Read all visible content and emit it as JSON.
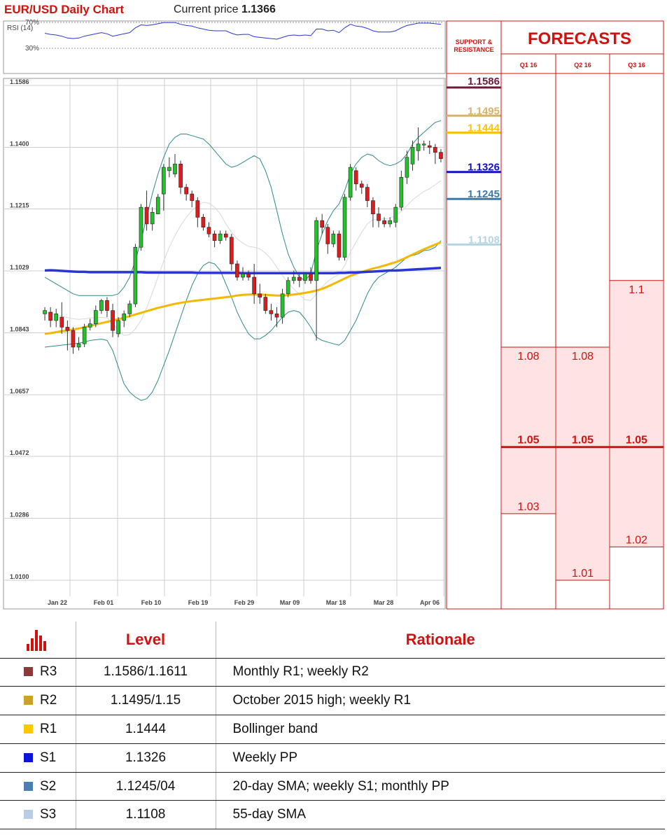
{
  "header": {
    "title": "EUR/USD Daily Chart",
    "current_price_label": "Current price",
    "current_price": "1.1366"
  },
  "chart_data": {
    "type": "candlestick",
    "title": "EUR/USD Daily Chart",
    "y_ticks": [
      "1.1586",
      "1.1400",
      "1.1215",
      "1.1029",
      "1.0843",
      "1.0657",
      "1.0472",
      "1.0286",
      "1.0100"
    ],
    "ylim": [
      1.01,
      1.1586
    ],
    "x_ticks": [
      "Jan 22",
      "Feb 01",
      "Feb 10",
      "Feb 19",
      "Feb 29",
      "Mar 09",
      "Mar 18",
      "Mar 28",
      "Apr 06"
    ],
    "grid": true,
    "candles": [
      [
        1.09,
        1.091,
        1.088,
        1.092
      ],
      [
        1.0905,
        1.088,
        1.086,
        1.092
      ],
      [
        1.088,
        1.09,
        1.086,
        1.0915
      ],
      [
        1.089,
        1.086,
        1.084,
        1.0935
      ],
      [
        1.086,
        1.085,
        1.079,
        1.088
      ],
      [
        1.085,
        1.08,
        1.078,
        1.086
      ],
      [
        1.08,
        1.081,
        1.079,
        1.083
      ],
      [
        1.081,
        1.086,
        1.08,
        1.087
      ],
      [
        1.086,
        1.087,
        1.085,
        1.0885
      ],
      [
        1.087,
        1.091,
        1.086,
        1.0925
      ],
      [
        1.091,
        1.094,
        1.09,
        1.0945
      ],
      [
        1.094,
        1.091,
        1.089,
        1.095
      ],
      [
        1.091,
        1.085,
        1.083,
        1.093
      ],
      [
        1.084,
        1.088,
        1.083,
        1.089
      ],
      [
        1.088,
        1.09,
        1.086,
        1.091
      ],
      [
        1.09,
        1.093,
        1.089,
        1.094
      ],
      [
        1.093,
        1.11,
        1.092,
        1.111
      ],
      [
        1.11,
        1.122,
        1.109,
        1.123
      ],
      [
        1.122,
        1.117,
        1.115,
        1.127
      ],
      [
        1.117,
        1.1205,
        1.115,
        1.122
      ],
      [
        1.12,
        1.125,
        1.12,
        1.126
      ],
      [
        1.126,
        1.134,
        1.121,
        1.135
      ],
      [
        1.133,
        1.134,
        1.131,
        1.137
      ],
      [
        1.132,
        1.135,
        1.131,
        1.138
      ],
      [
        1.135,
        1.128,
        1.126,
        1.136
      ],
      [
        1.128,
        1.126,
        1.124,
        1.129
      ],
      [
        1.126,
        1.124,
        1.122,
        1.127
      ],
      [
        1.124,
        1.119,
        1.116,
        1.125
      ],
      [
        1.119,
        1.116,
        1.115,
        1.12
      ],
      [
        1.116,
        1.114,
        1.113,
        1.1175
      ],
      [
        1.114,
        1.112,
        1.11,
        1.115
      ],
      [
        1.112,
        1.114,
        1.111,
        1.115
      ],
      [
        1.114,
        1.113,
        1.112,
        1.115
      ],
      [
        1.113,
        1.105,
        1.103,
        1.114
      ],
      [
        1.105,
        1.101,
        1.1,
        1.106
      ],
      [
        1.101,
        1.102,
        1.1,
        1.104
      ],
      [
        1.102,
        1.101,
        1.1,
        1.103
      ],
      [
        1.101,
        1.096,
        1.093,
        1.105
      ],
      [
        1.096,
        1.095,
        1.093,
        1.099
      ],
      [
        1.095,
        1.091,
        1.09,
        1.096
      ],
      [
        1.091,
        1.09,
        1.088,
        1.093
      ],
      [
        1.09,
        1.089,
        1.086,
        1.092
      ],
      [
        1.089,
        1.096,
        1.087,
        1.0975
      ],
      [
        1.096,
        1.1,
        1.095,
        1.101
      ],
      [
        1.1,
        1.101,
        1.099,
        1.103
      ],
      [
        1.101,
        1.1,
        1.098,
        1.102
      ],
      [
        1.1,
        1.102,
        1.099,
        1.1025
      ],
      [
        1.102,
        1.1,
        1.099,
        1.104
      ],
      [
        1.1,
        1.118,
        1.082,
        1.119
      ],
      [
        1.118,
        1.116,
        1.114,
        1.12
      ],
      [
        1.116,
        1.111,
        1.108,
        1.117
      ],
      [
        1.111,
        1.114,
        1.11,
        1.115
      ],
      [
        1.114,
        1.107,
        1.106,
        1.115
      ],
      [
        1.107,
        1.125,
        1.106,
        1.126
      ],
      [
        1.125,
        1.134,
        1.124,
        1.135
      ],
      [
        1.133,
        1.129,
        1.127,
        1.134
      ],
      [
        1.129,
        1.128,
        1.126,
        1.13
      ],
      [
        1.128,
        1.124,
        1.122,
        1.129
      ],
      [
        1.124,
        1.12,
        1.116,
        1.125
      ],
      [
        1.12,
        1.118,
        1.116,
        1.122
      ],
      [
        1.118,
        1.117,
        1.116,
        1.119
      ],
      [
        1.117,
        1.118,
        1.116,
        1.119
      ],
      [
        1.1175,
        1.122,
        1.116,
        1.123
      ],
      [
        1.122,
        1.131,
        1.121,
        1.133
      ],
      [
        1.131,
        1.137,
        1.129,
        1.139
      ],
      [
        1.135,
        1.14,
        1.133,
        1.142
      ],
      [
        1.139,
        1.141,
        1.136,
        1.146
      ],
      [
        1.141,
        1.141,
        1.139,
        1.142
      ],
      [
        1.1405,
        1.14,
        1.138,
        1.142
      ],
      [
        1.14,
        1.1385,
        1.135,
        1.141
      ],
      [
        1.1385,
        1.1366,
        1.1355,
        1.1395
      ]
    ],
    "sma200": [
      1.103,
      1.1031,
      1.103,
      1.1029,
      1.1028,
      1.1027,
      1.1026,
      1.1026,
      1.1025,
      1.1025,
      1.1025,
      1.1025,
      1.1025,
      1.1025,
      1.1025,
      1.1025,
      1.1025,
      1.1025,
      1.1024,
      1.1024,
      1.1024,
      1.1024,
      1.1024,
      1.1024,
      1.1024,
      1.1024,
      1.1024,
      1.1023,
      1.1023,
      1.1023,
      1.1023,
      1.1023,
      1.1023,
      1.1023,
      1.1023,
      1.1022,
      1.1022,
      1.1022,
      1.1022,
      1.1022,
      1.1022,
      1.1022,
      1.1022,
      1.1022,
      1.1022,
      1.1022,
      1.1022,
      1.1022,
      1.1022,
      1.1022,
      1.1022,
      1.1022,
      1.1023,
      1.1023,
      1.1024,
      1.1024,
      1.1025,
      1.1026,
      1.1027,
      1.1028,
      1.1029,
      1.103,
      1.103,
      1.1031,
      1.1032,
      1.1033,
      1.1034,
      1.1035,
      1.1036,
      1.1037,
      1.1038
    ],
    "sma55": [
      1.084,
      1.0842,
      1.0845,
      1.0848,
      1.085,
      1.0853,
      1.0856,
      1.086,
      1.0864,
      1.0868,
      1.0872,
      1.0876,
      1.088,
      1.0884,
      1.0888,
      1.0893,
      1.0898,
      1.0903,
      1.0908,
      1.0913,
      1.0918,
      1.0922,
      1.0926,
      1.093,
      1.0933,
      1.0936,
      1.0938,
      1.094,
      1.0942,
      1.0944,
      1.0946,
      1.0948,
      1.095,
      1.0952,
      1.0955,
      1.0957,
      1.0958,
      1.0958,
      1.0958,
      1.0957,
      1.0956,
      1.0955,
      1.0955,
      1.0956,
      1.0958,
      1.096,
      1.0963,
      1.0966,
      1.097,
      1.0975,
      1.0982,
      1.099,
      1.0998,
      1.1006,
      1.1014,
      1.102,
      1.1026,
      1.1031,
      1.1036,
      1.104,
      1.1045,
      1.105,
      1.1055,
      1.1062,
      1.107,
      1.1078,
      1.1086,
      1.1094,
      1.1101,
      1.1108,
      1.1115
    ],
    "bb_upper": [
      1.101,
      1.1,
      1.099,
      1.098,
      1.097,
      1.096,
      1.0955,
      1.0955,
      1.0955,
      1.0955,
      1.0955,
      1.0955,
      1.0955,
      1.096,
      1.098,
      1.101,
      1.106,
      1.112,
      1.119,
      1.126,
      1.132,
      1.137,
      1.141,
      1.143,
      1.144,
      1.144,
      1.1435,
      1.143,
      1.1425,
      1.141,
      1.139,
      1.137,
      1.135,
      1.134,
      1.1345,
      1.1355,
      1.1365,
      1.1375,
      1.1365,
      1.133,
      1.128,
      1.121,
      1.114,
      1.108,
      1.104,
      1.101,
      1.1,
      1.102,
      1.109,
      1.114,
      1.118,
      1.121,
      1.123,
      1.127,
      1.132,
      1.135,
      1.137,
      1.138,
      1.1375,
      1.136,
      1.135,
      1.1345,
      1.135,
      1.136,
      1.138,
      1.141,
      1.143,
      1.1445,
      1.146,
      1.1475,
      1.148
    ],
    "bb_lower": [
      1.08,
      1.0802,
      1.0804,
      1.0806,
      1.0808,
      1.081,
      1.0812,
      1.0815,
      1.082,
      1.0822,
      1.0824,
      1.082,
      1.079,
      1.074,
      1.069,
      1.0665,
      1.065,
      1.064,
      1.0645,
      1.0665,
      1.07,
      1.0745,
      1.079,
      1.084,
      1.089,
      1.094,
      1.0985,
      1.102,
      1.1045,
      1.1055,
      1.105,
      1.103,
      1.099,
      1.095,
      1.0905,
      1.087,
      1.084,
      1.0825,
      1.0825,
      1.0835,
      1.085,
      1.087,
      1.089,
      1.0905,
      1.091,
      1.0905,
      1.0885,
      1.086,
      1.083,
      1.082,
      1.0815,
      1.081,
      1.0806,
      1.082,
      1.085,
      1.088,
      1.092,
      1.096,
      1.099,
      1.101,
      1.102,
      1.103,
      1.104,
      1.1055,
      1.107,
      1.1075,
      1.108,
      1.109,
      1.1092,
      1.11,
      1.112
    ],
    "rsi": [
      53,
      51,
      50,
      48,
      45,
      44,
      45,
      48,
      50,
      52,
      54,
      52,
      48,
      50,
      52,
      54,
      62,
      67,
      66,
      67,
      69,
      71,
      71,
      71,
      68,
      66,
      65,
      62,
      60,
      58,
      57,
      57,
      57,
      53,
      50,
      51,
      51,
      47,
      46,
      45,
      44,
      43,
      46,
      49,
      50,
      49,
      50,
      49,
      60,
      60,
      57,
      58,
      54,
      62,
      68,
      65,
      64,
      61,
      57,
      55,
      55,
      55,
      57,
      62,
      66,
      68,
      70,
      70,
      70,
      69,
      68
    ],
    "rsi_ticks": [
      "70%",
      "30%"
    ],
    "rsi_label": "RSI (14)"
  },
  "sr": {
    "header_line1": "SUPPORT &",
    "header_line2": "RESISTANCE",
    "levels": [
      {
        "label": "1.1586",
        "value": 1.1586,
        "color": "#6b1a3a"
      },
      {
        "label": "1.1495",
        "value": 1.1495,
        "color": "#d8b36a"
      },
      {
        "label": "1.1444",
        "value": 1.1444,
        "color": "#f2c40f"
      },
      {
        "label": "1.1326",
        "value": 1.1326,
        "color": "#1010c8"
      },
      {
        "label": "1.1245",
        "value": 1.1245,
        "color": "#3b7aa8"
      },
      {
        "label": "1.1108",
        "value": 1.1108,
        "color": "#b4d4e0"
      }
    ]
  },
  "forecasts": {
    "title": "FORECASTS",
    "quarters": [
      {
        "name": "Q1 16",
        "high": "1.08",
        "mid": "1.05",
        "low": "1.03",
        "high_value": 1.08,
        "low_value": 1.03
      },
      {
        "name": "Q2 16",
        "high": "1.08",
        "mid": "1.05",
        "low": "1.01",
        "high_value": 1.08,
        "low_value": 1.01
      },
      {
        "name": "Q3 16",
        "high": "1.1",
        "mid": "1.05",
        "low": "1.02",
        "high_value": 1.1,
        "low_value": 1.02
      }
    ],
    "consensus_value": 1.05
  },
  "table": {
    "header_level": "Level",
    "header_rationale": "Rationale",
    "rows": [
      {
        "key": "R3",
        "color": "#8b3a3a",
        "level": "1.1586/1.1611",
        "rationale": "Monthly R1; weekly R2"
      },
      {
        "key": "R2",
        "color": "#c9a227",
        "level": "1.1495/1.15",
        "rationale": "October 2015 high; weekly R1"
      },
      {
        "key": "R1",
        "color": "#ffc800",
        "level": "1.1444",
        "rationale": "Bollinger band"
      },
      {
        "key": "S1",
        "color": "#0a14d8",
        "level": "1.1326",
        "rationale": "Weekly PP"
      },
      {
        "key": "S2",
        "color": "#4a7fb0",
        "level": "1.1245/04",
        "rationale": "20-day SMA; weekly S1; monthly PP"
      },
      {
        "key": "S3",
        "color": "#b8cde4",
        "level": "1.1108",
        "rationale": "55-day SMA"
      }
    ]
  }
}
